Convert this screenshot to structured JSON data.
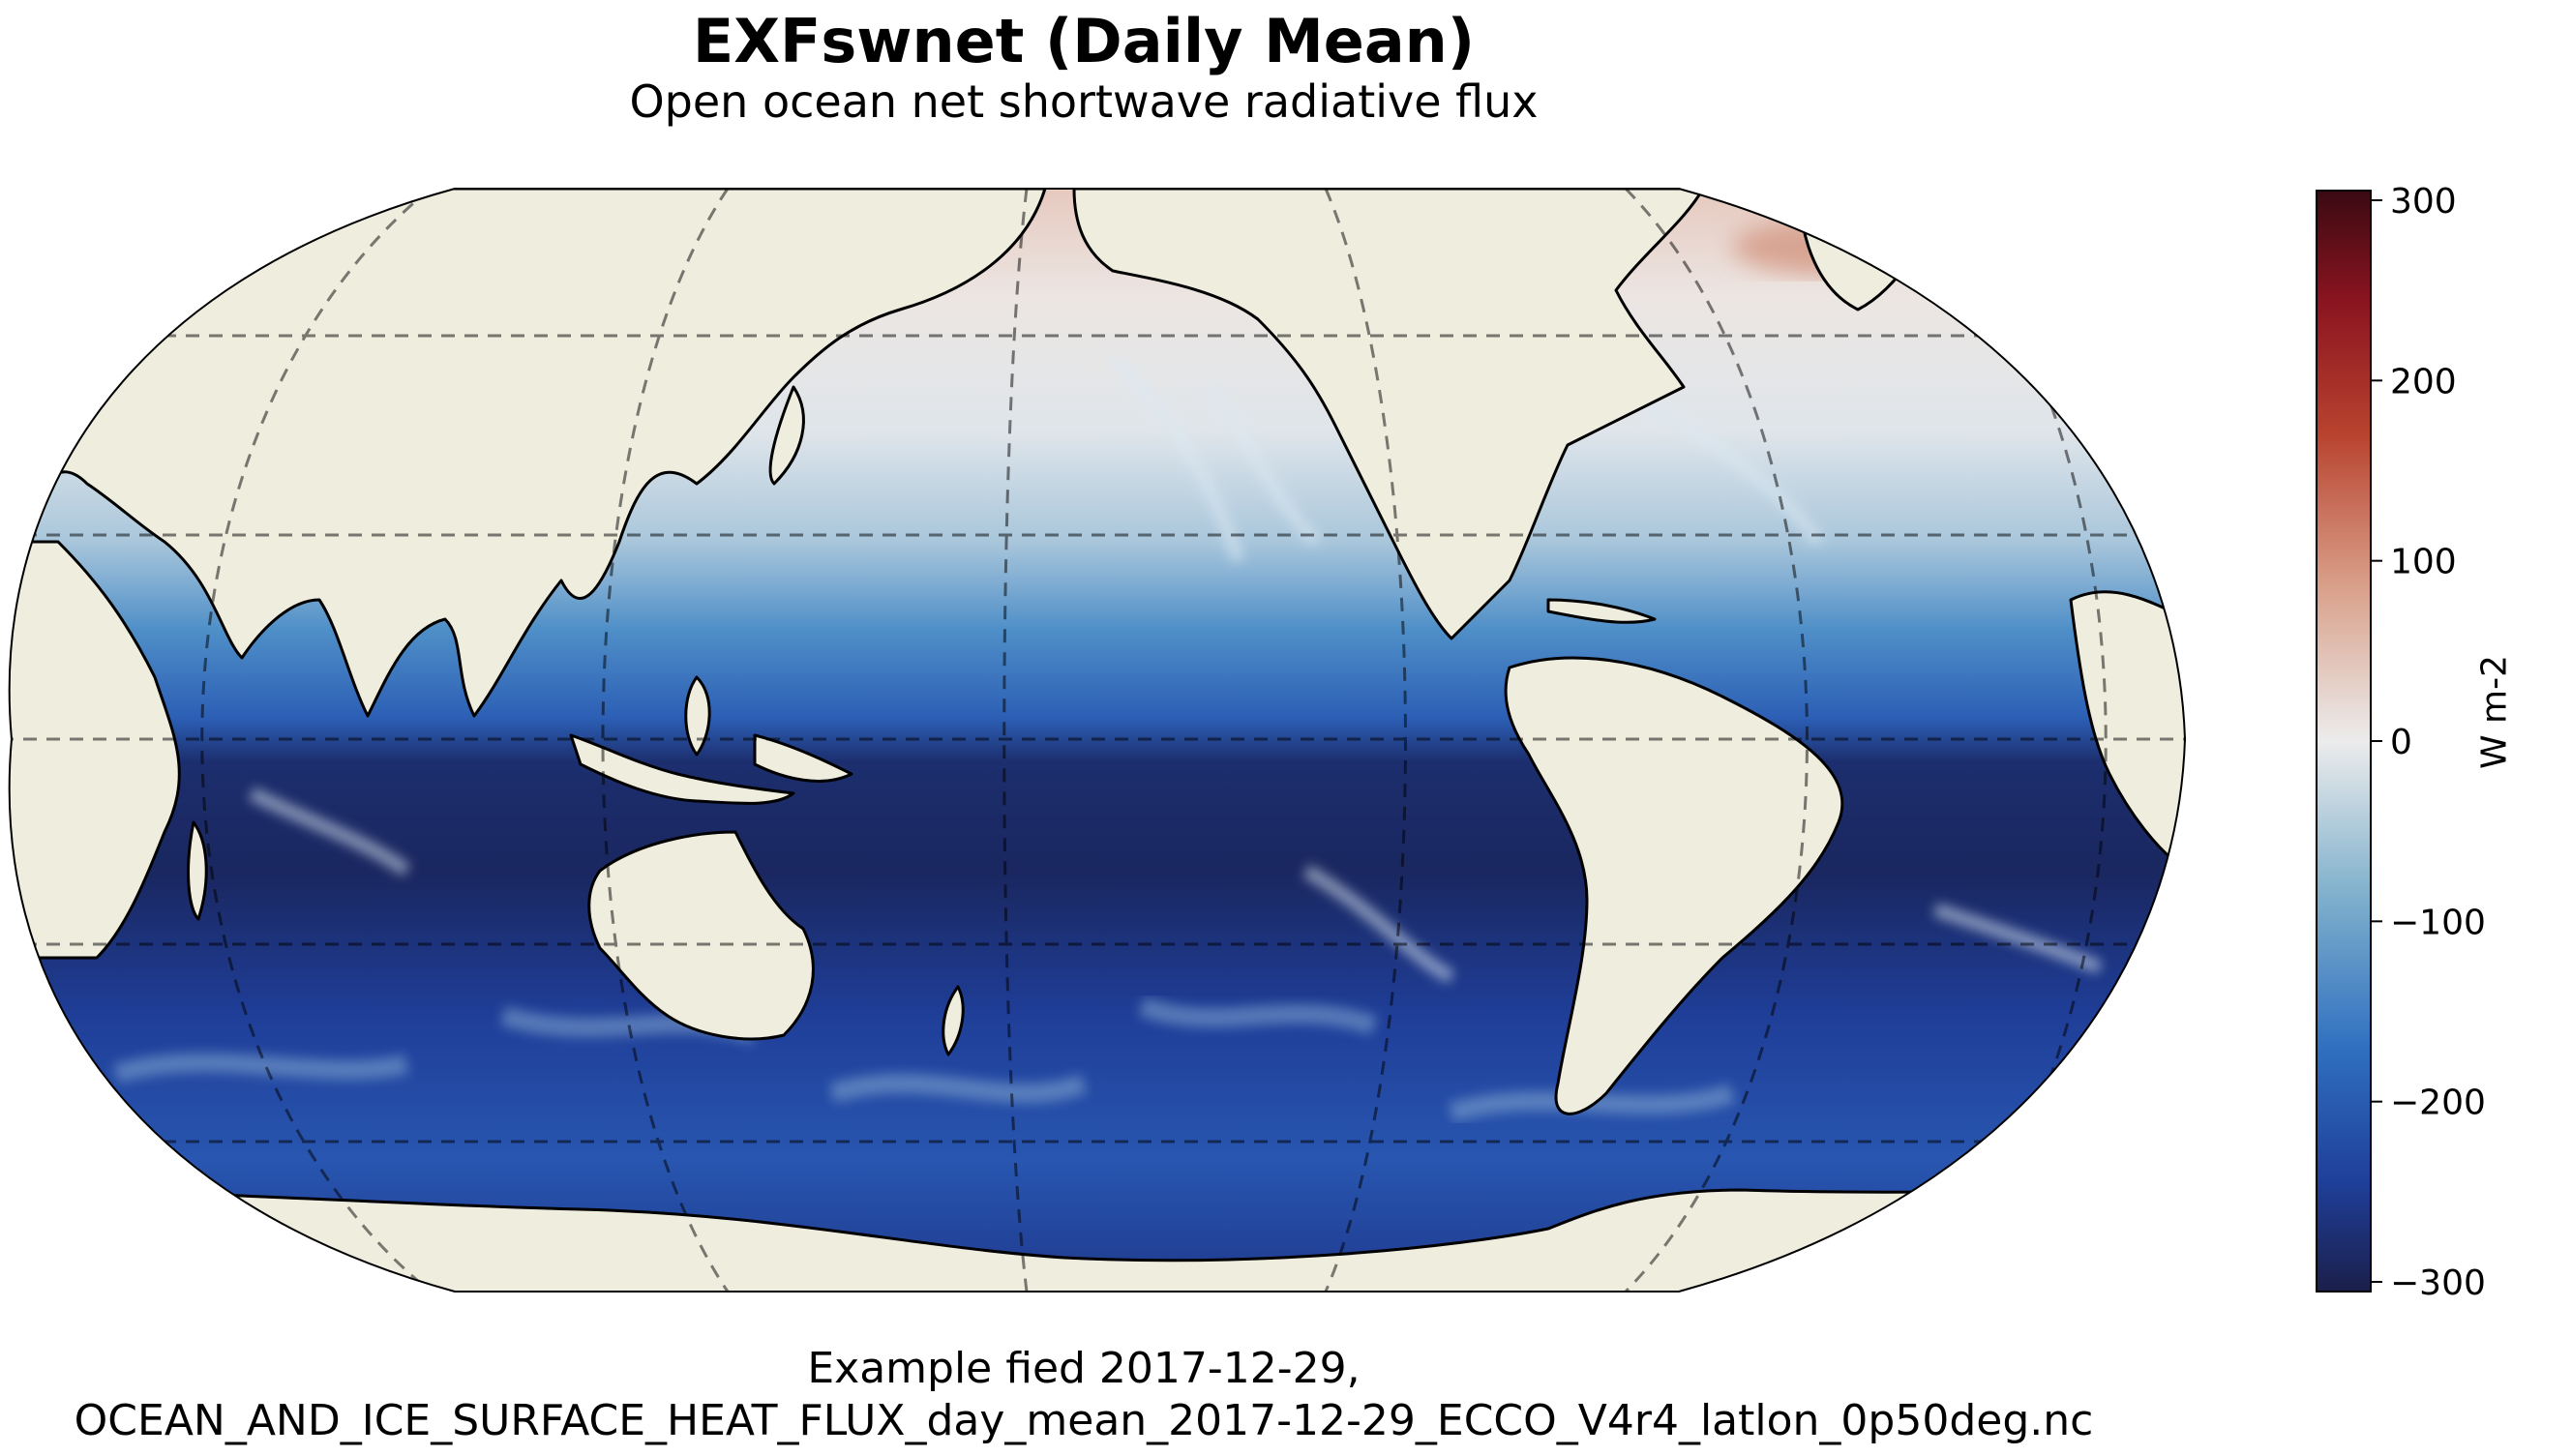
{
  "figure": {
    "title": "EXFswnet (Daily Mean)",
    "subtitle": "Open ocean net shortwave radiative flux",
    "caption_line1": "Example fied 2017-12-29,",
    "caption_line2": "OCEAN_AND_ICE_SURFACE_HEAT_FLUX_day_mean_2017-12-29_ECCO_V4r4_latlon_0p50deg.nc"
  },
  "map": {
    "projection": "robinson",
    "central_longitude": 180,
    "gridlines": "dashed",
    "land_color": "#efedde",
    "coastline_color": "#000000",
    "pattern": "near-zero in northern hemisphere winter, strongly negative in southern hemisphere summer"
  },
  "colorbar": {
    "label": "W m-2",
    "colormap": "diverging blue-white-red",
    "vmin": -300,
    "vmax": 300,
    "ticks": [
      "300",
      "200",
      "100",
      "0",
      "−100",
      "−200",
      "−300"
    ],
    "tick_values": [
      300,
      200,
      100,
      0,
      -100,
      -200,
      -300
    ],
    "colors": [
      "#1b1f4a",
      "#1f3f9a",
      "#2f6fc0",
      "#7fb0cc",
      "#ececec",
      "#d9a08a",
      "#b8422e",
      "#8a1420",
      "#3a0a12"
    ]
  }
}
